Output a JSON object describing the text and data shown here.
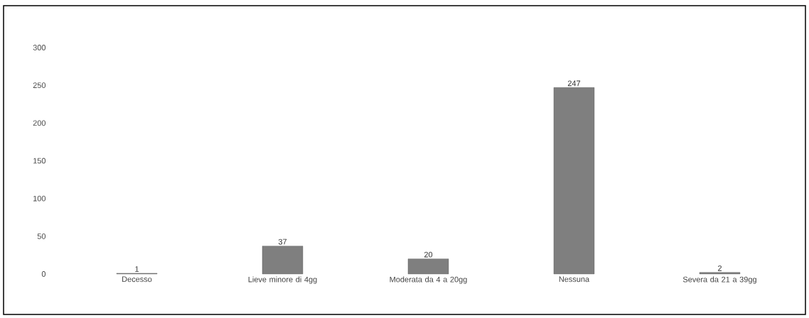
{
  "chart_data": {
    "type": "bar",
    "categories": [
      "Decesso",
      "Lieve minore di 4gg",
      "Moderata da 4 a 20gg",
      "Nessuna",
      "Severa da 21 a 39gg"
    ],
    "values": [
      1,
      37,
      20,
      247,
      2
    ],
    "color": "#7f7f7f",
    "ylim": [
      0,
      300
    ],
    "yticks": [
      0,
      50,
      100,
      150,
      200,
      250,
      300
    ],
    "data_labels": true,
    "grid": false
  }
}
